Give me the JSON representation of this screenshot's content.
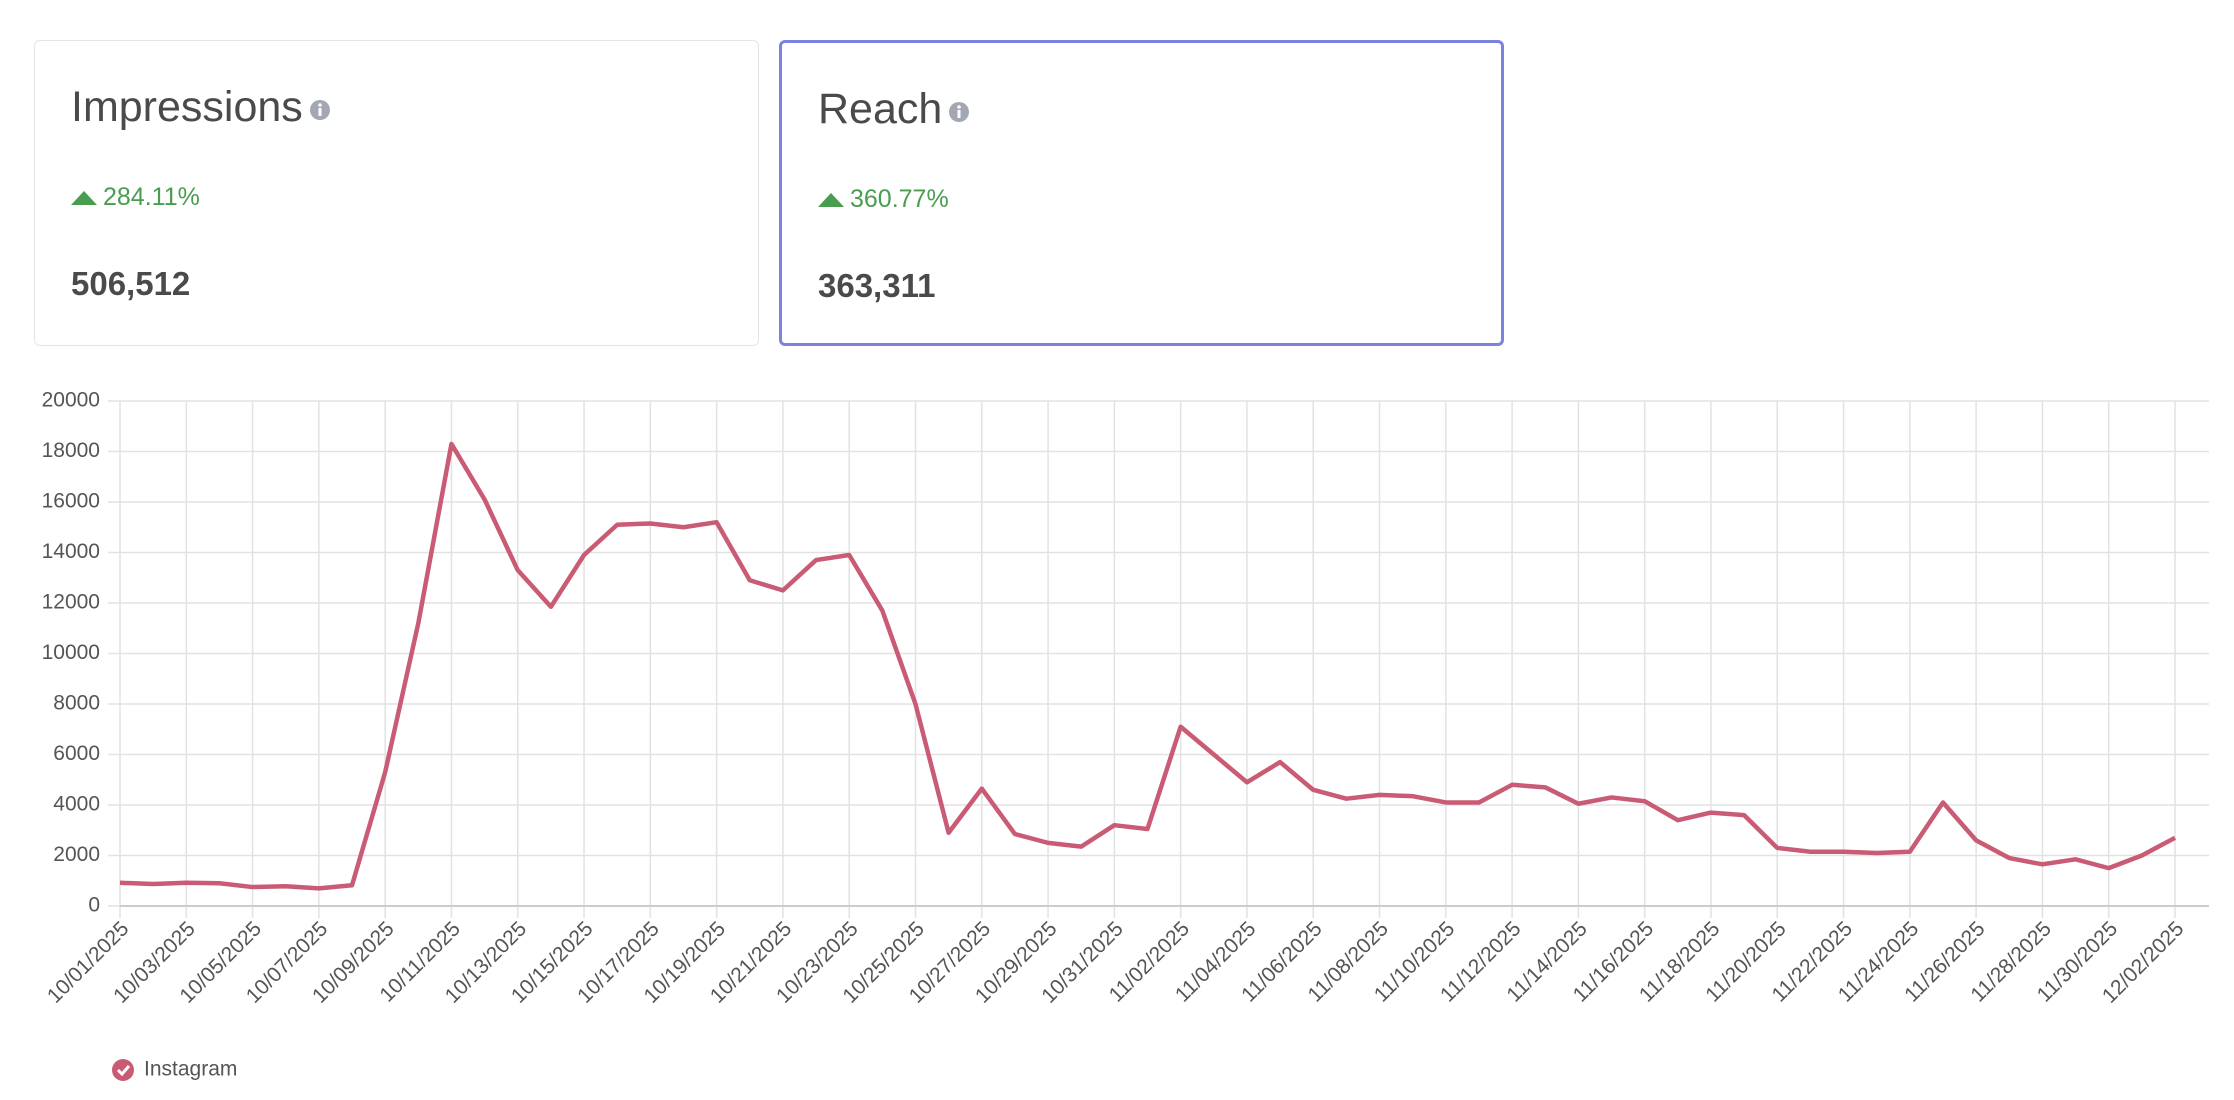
{
  "cards": [
    {
      "title": "Impressions",
      "change": "284.11%",
      "value": "506,512"
    },
    {
      "title": "Reach",
      "change": "360.77%",
      "value": "363,311"
    }
  ],
  "chart_data": {
    "type": "line",
    "categories": [
      "10/01/2025",
      null,
      "10/03/2025",
      null,
      "10/05/2025",
      null,
      "10/07/2025",
      null,
      "10/09/2025",
      null,
      "10/11/2025",
      null,
      "10/13/2025",
      null,
      "10/15/2025",
      null,
      "10/17/2025",
      null,
      "10/19/2025",
      null,
      "10/21/2025",
      null,
      "10/23/2025",
      null,
      "10/25/2025",
      null,
      "10/27/2025",
      null,
      "10/29/2025",
      null,
      "10/31/2025",
      null,
      "11/02/2025",
      null,
      "11/04/2025",
      null,
      "11/06/2025",
      null,
      "11/08/2025",
      null,
      "11/10/2025",
      null,
      "11/12/2025",
      null,
      "11/14/2025",
      null,
      "11/16/2025",
      null,
      "11/18/2025",
      null,
      "11/20/2025",
      null,
      "11/22/2025",
      null,
      "11/24/2025",
      null,
      "11/26/2025",
      null,
      "11/28/2025",
      null,
      "11/30/2025",
      null,
      "12/02/2025"
    ],
    "series": [
      {
        "name": "Instagram",
        "color": "#c95b74",
        "values": [
          920,
          870,
          920,
          900,
          750,
          780,
          700,
          820,
          5300,
          11200,
          18300,
          16100,
          13300,
          11850,
          13900,
          15100,
          15150,
          15000,
          15200,
          12900,
          12500,
          13700,
          13900,
          11700,
          8000,
          2900,
          4650,
          2850,
          2500,
          2350,
          3200,
          3050,
          7100,
          6000,
          4900,
          5700,
          4600,
          4250,
          4400,
          4350,
          4100,
          4100,
          4800,
          4700,
          4050,
          4300,
          4150,
          3400,
          3700,
          3600,
          2300,
          2150,
          2150,
          2100,
          2150,
          4100,
          2600,
          1900,
          1650,
          1850,
          1500,
          2000,
          2700
        ]
      }
    ],
    "ylim": [
      0,
      20000
    ],
    "yticks": [
      0,
      2000,
      4000,
      6000,
      8000,
      10000,
      12000,
      14000,
      16000,
      18000,
      20000
    ],
    "grid": true
  }
}
